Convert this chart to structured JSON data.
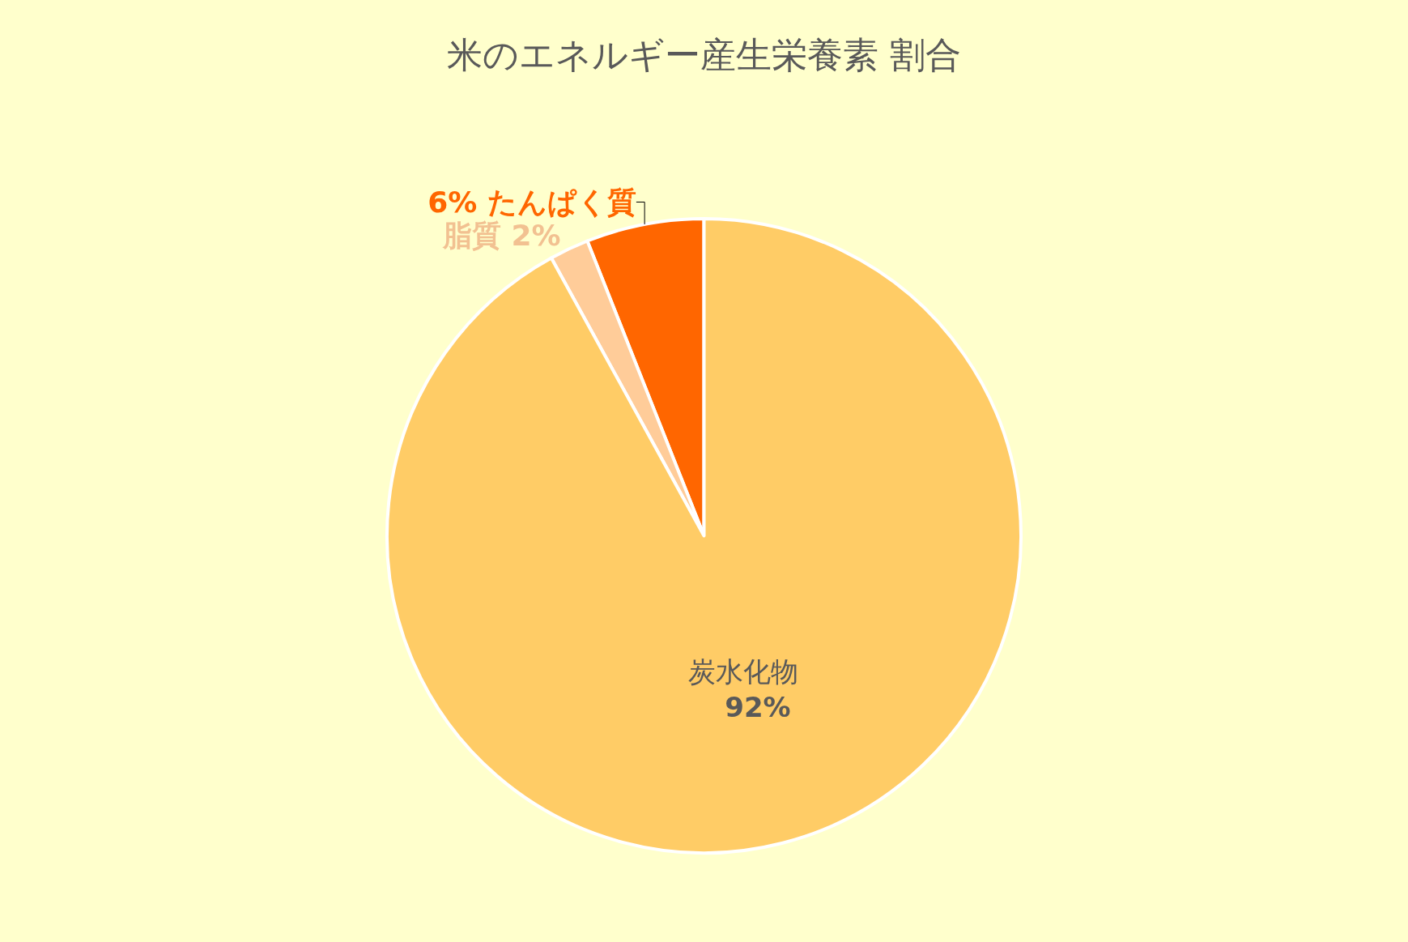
{
  "chart_data": {
    "type": "pie",
    "title": "米のエネルギー産生栄養素 割合",
    "categories": [
      "たんぱく質",
      "脂質",
      "炭水化物"
    ],
    "values": [
      6,
      2,
      92
    ],
    "value_labels": [
      "6%",
      "2%",
      "92%"
    ],
    "colors": [
      "#ff6600",
      "#ffcc99",
      "#ffcc66"
    ],
    "legend": false
  }
}
